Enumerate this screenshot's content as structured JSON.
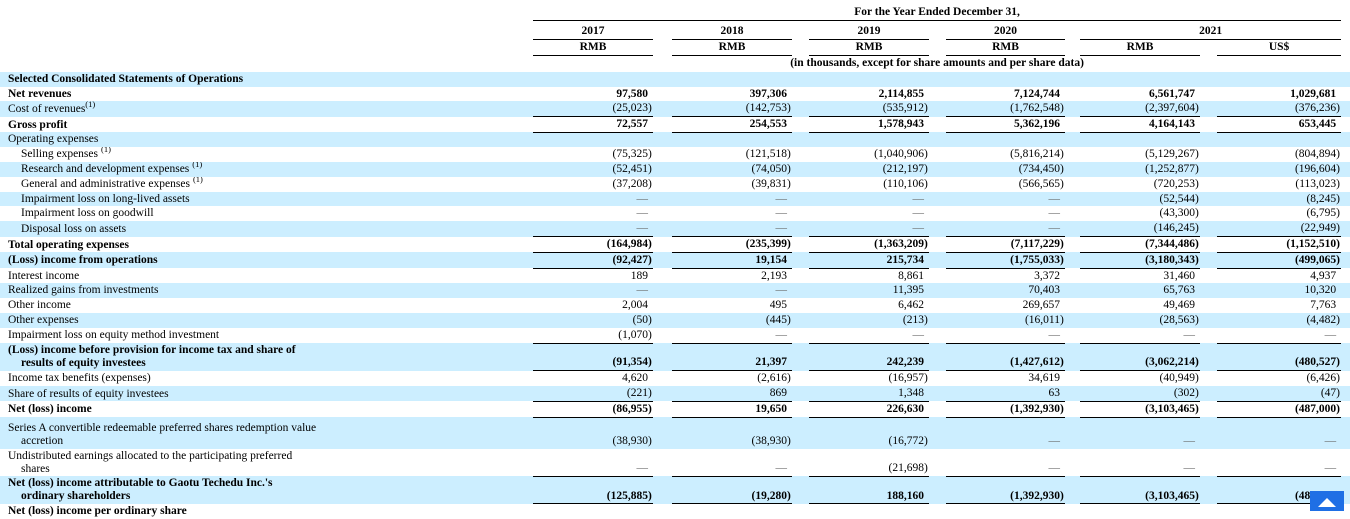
{
  "colors": {
    "stripe": "#CCEEFF",
    "border": "#000000",
    "scroll_button": "#1F6FE5",
    "dash": "#666666"
  },
  "header": {
    "title": "For the Year Ended December 31,",
    "years": [
      "2017",
      "2018",
      "2019",
      "2020",
      "2021"
    ],
    "currencies": [
      "RMB",
      "RMB",
      "RMB",
      "RMB",
      "RMB",
      "US$"
    ],
    "subtitle": "(in thousands, except for share amounts and per share data)"
  },
  "table": {
    "rows": [
      {
        "label": "Selected Consolidated Statements of Operations",
        "bold": true,
        "shaded": true,
        "values": [
          "",
          "",
          "",
          "",
          "",
          ""
        ]
      },
      {
        "label": "Net revenues",
        "bold": true,
        "values": [
          "97,580",
          "397,306",
          "2,114,855",
          "7,124,744",
          "6,561,747",
          "1,029,681"
        ]
      },
      {
        "label": "Cost of revenues",
        "sup": "(1)",
        "shaded": true,
        "lineBelow": true,
        "values": [
          "(25,023)",
          "(142,753)",
          "(535,912)",
          "(1,762,548)",
          "(2,397,604)",
          "(376,236)"
        ]
      },
      {
        "label": "Gross profit",
        "bold": true,
        "lineBelow": true,
        "values": [
          "72,557",
          "254,553",
          "1,578,943",
          "5,362,196",
          "4,164,143",
          "653,445"
        ]
      },
      {
        "label": "Operating expenses",
        "shaded": true,
        "values": [
          "",
          "",
          "",
          "",
          "",
          ""
        ]
      },
      {
        "label": "Selling expenses",
        "sup": "(1)",
        "supGap": true,
        "indent": true,
        "values": [
          "(75,325)",
          "(121,518)",
          "(1,040,906)",
          "(5,816,214)",
          "(5,129,267)",
          "(804,894)"
        ]
      },
      {
        "label": "Research and development expenses",
        "sup": "(1)",
        "supGap": true,
        "indent": true,
        "shaded": true,
        "values": [
          "(52,451)",
          "(74,050)",
          "(212,197)",
          "(734,450)",
          "(1,252,877)",
          "(196,604)"
        ]
      },
      {
        "label": "General and administrative expenses",
        "sup": "(1)",
        "supGap": true,
        "indent": true,
        "values": [
          "(37,208)",
          "(39,831)",
          "(110,106)",
          "(566,565)",
          "(720,253)",
          "(113,023)"
        ]
      },
      {
        "label": "Impairment loss on long-lived assets",
        "indent": true,
        "shaded": true,
        "values": [
          "—",
          "—",
          "—",
          "—",
          "(52,544)",
          "(8,245)"
        ]
      },
      {
        "label": "Impairment loss on goodwill",
        "indent": true,
        "values": [
          "—",
          "—",
          "—",
          "—",
          "(43,300)",
          "(6,795)"
        ]
      },
      {
        "label": "Disposal loss on assets",
        "indent": true,
        "shaded": true,
        "lineBelow": true,
        "values": [
          "—",
          "—",
          "—",
          "—",
          "(146,245)",
          "(22,949)"
        ]
      },
      {
        "label": "Total operating expenses",
        "bold": true,
        "lineBelow": true,
        "values": [
          "(164,984)",
          "(235,399)",
          "(1,363,209)",
          "(7,117,229)",
          "(7,344,486)",
          "(1,152,510)"
        ]
      },
      {
        "label": "(Loss) income from operations",
        "bold": true,
        "shaded": true,
        "lineBelow": true,
        "values": [
          "(92,427)",
          "19,154",
          "215,734",
          "(1,755,033)",
          "(3,180,343)",
          "(499,065)"
        ]
      },
      {
        "label": "Interest income",
        "values": [
          "189",
          "2,193",
          "8,861",
          "3,372",
          "31,460",
          "4,937"
        ]
      },
      {
        "label": "Realized gains from investments",
        "shaded": true,
        "values": [
          "—",
          "—",
          "11,395",
          "70,403",
          "65,763",
          "10,320"
        ]
      },
      {
        "label": "Other income",
        "values": [
          "2,004",
          "495",
          "6,462",
          "269,657",
          "49,469",
          "7,763"
        ]
      },
      {
        "label": "Other expenses",
        "shaded": true,
        "values": [
          "(50)",
          "(445)",
          "(213)",
          "(16,011)",
          "(28,563)",
          "(4,482)"
        ]
      },
      {
        "label": "Impairment loss on equity method investment",
        "lineBelow": true,
        "values": [
          "(1,070)",
          "—",
          "—",
          "—",
          "—",
          "—"
        ]
      },
      {
        "label": "(Loss) income before provision for income tax and share of",
        "label2": "results of equity investees",
        "bold": true,
        "shaded": true,
        "lineBelow": true,
        "values": [
          "(91,354)",
          "21,397",
          "242,239",
          "(1,427,612)",
          "(3,062,214)",
          "(480,527)"
        ]
      },
      {
        "label": "Income tax benefits (expenses)",
        "values": [
          "4,620",
          "(2,616)",
          "(16,957)",
          "34,619",
          "(40,949)",
          "(6,426)"
        ]
      },
      {
        "label": "Share of results of equity investees",
        "shaded": true,
        "lineBelow": true,
        "values": [
          "(221)",
          "869",
          "1,348",
          "63",
          "(302)",
          "(47)"
        ]
      },
      {
        "label": "Net (loss) income",
        "bold": true,
        "lineBelow": true,
        "values": [
          "(86,955)",
          "19,650",
          "226,630",
          "(1,392,930)",
          "(3,103,465)",
          "(487,000)"
        ]
      },
      {
        "label": "Series A convertible redeemable preferred shares redemption value",
        "label2": "accretion",
        "shaded": true,
        "ptop": true,
        "values": [
          "(38,930)",
          "(38,930)",
          "(16,772)",
          "—",
          "—",
          "—"
        ]
      },
      {
        "label": "Undistributed earnings allocated to the participating preferred",
        "label2": "shares",
        "lineBelow": true,
        "values": [
          "—",
          "—",
          "(21,698)",
          "—",
          "—",
          "—"
        ]
      },
      {
        "label": "Net (loss) income attributable to Gaotu Techedu Inc.'s",
        "label2": "ordinary shareholders",
        "bold": true,
        "shaded": true,
        "lineBelow": true,
        "values": [
          "(125,885)",
          "(19,280)",
          "188,160",
          "(1,392,930)",
          "(3,103,465)",
          "(487,000)"
        ]
      },
      {
        "label": "Net (loss) income per ordinary share",
        "bold": true,
        "values": [
          "",
          "",
          "",
          "",
          "",
          ""
        ]
      }
    ]
  },
  "scroll_button": {
    "icon": "chevron-up"
  }
}
